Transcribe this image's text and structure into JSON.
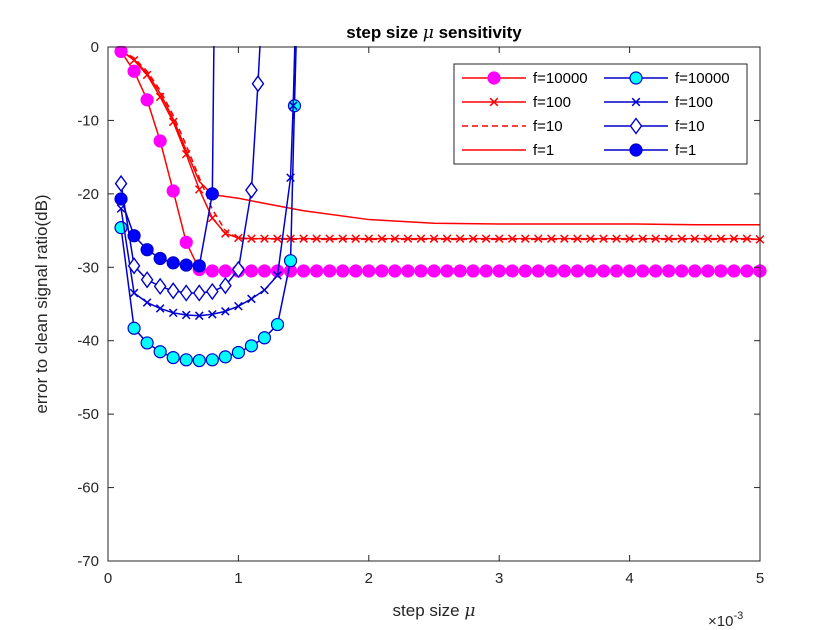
{
  "chart_data": {
    "type": "line",
    "title_prefix": "step size",
    "title_symbol": "μ",
    "title_suffix": "sensitivity",
    "xlabel_prefix": "step size",
    "xlabel_symbol": "μ",
    "ylabel": "error to clean signal ratio(dB)",
    "x_exponent_base": "×10",
    "x_exponent_power": "-3",
    "xlim": [
      0,
      5
    ],
    "ylim": [
      -70,
      0
    ],
    "xticks": [
      0,
      1,
      2,
      3,
      4,
      5
    ],
    "yticks": [
      0,
      -10,
      -20,
      -30,
      -40,
      -50,
      -60,
      -70
    ],
    "grid": false,
    "legend_position": "top-right",
    "series": [
      {
        "name": "f=10000",
        "color": "#ff0000",
        "line_style": "solid",
        "marker": "circle",
        "marker_color": "#ff00ff",
        "marker_edge": "#ff00ff",
        "x": [
          0.1,
          0.2,
          0.3,
          0.4,
          0.5,
          0.6,
          0.7,
          0.8,
          0.9,
          1.0,
          1.1,
          1.2,
          1.3,
          1.4,
          1.5,
          1.6,
          1.7,
          1.8,
          1.9,
          2.0,
          2.1,
          2.2,
          2.3,
          2.4,
          2.5,
          2.6,
          2.7,
          2.8,
          2.9,
          3.0,
          3.1,
          3.2,
          3.3,
          3.4,
          3.5,
          3.6,
          3.7,
          3.8,
          3.9,
          4.0,
          4.1,
          4.2,
          4.3,
          4.4,
          4.5,
          4.6,
          4.7,
          4.8,
          4.9,
          5.0
        ],
        "y": [
          -0.6,
          -3.3,
          -7.2,
          -12.8,
          -19.6,
          -26.6,
          -30.3,
          -30.5,
          -30.5,
          -30.5,
          -30.5,
          -30.5,
          -30.5,
          -30.5,
          -30.5,
          -30.5,
          -30.5,
          -30.5,
          -30.5,
          -30.5,
          -30.5,
          -30.5,
          -30.5,
          -30.5,
          -30.5,
          -30.5,
          -30.5,
          -30.5,
          -30.5,
          -30.5,
          -30.5,
          -30.5,
          -30.5,
          -30.5,
          -30.5,
          -30.5,
          -30.5,
          -30.5,
          -30.5,
          -30.5,
          -30.5,
          -30.5,
          -30.5,
          -30.5,
          -30.5,
          -30.5,
          -30.5,
          -30.5,
          -30.5,
          -30.5
        ]
      },
      {
        "name": "f=100",
        "color": "#ff0000",
        "line_style": "solid",
        "marker": "x",
        "marker_color": "#ff0000",
        "marker_edge": "#ff0000",
        "x": [
          0.1,
          0.2,
          0.3,
          0.4,
          0.5,
          0.6,
          0.7,
          0.8,
          0.9,
          1.0,
          1.1,
          1.2,
          1.3,
          1.4,
          1.5,
          1.6,
          1.7,
          1.8,
          1.9,
          2.0,
          2.1,
          2.2,
          2.3,
          2.4,
          2.5,
          2.6,
          2.7,
          2.8,
          2.9,
          3.0,
          3.1,
          3.2,
          3.3,
          3.4,
          3.5,
          3.6,
          3.7,
          3.8,
          3.9,
          4.0,
          4.1,
          4.2,
          4.3,
          4.4,
          4.5,
          4.6,
          4.7,
          4.8,
          4.9,
          5.0
        ],
        "y": [
          -0.5,
          -1.8,
          -3.8,
          -6.8,
          -10.2,
          -14.6,
          -19.4,
          -23.3,
          -25.4,
          -26.0,
          -26.1,
          -26.1,
          -26.1,
          -26.1,
          -26.1,
          -26.1,
          -26.1,
          -26.1,
          -26.1,
          -26.1,
          -26.1,
          -26.1,
          -26.1,
          -26.1,
          -26.1,
          -26.1,
          -26.1,
          -26.1,
          -26.1,
          -26.1,
          -26.1,
          -26.1,
          -26.1,
          -26.1,
          -26.1,
          -26.1,
          -26.1,
          -26.1,
          -26.1,
          -26.1,
          -26.1,
          -26.1,
          -26.1,
          -26.1,
          -26.1,
          -26.1,
          -26.1,
          -26.1,
          -26.1,
          -26.2
        ]
      },
      {
        "name": "f=10",
        "color": "#ff0000",
        "line_style": "dashed",
        "marker": "none",
        "marker_color": "#ff0000",
        "marker_edge": "#ff0000",
        "x": [
          0.1,
          0.2,
          0.3,
          0.4,
          0.5,
          0.6,
          0.7,
          0.8,
          0.9,
          1.0,
          1.5,
          2.0,
          2.5,
          3.0,
          3.5,
          4.0,
          4.5,
          5.0
        ],
        "y": [
          -0.4,
          -1.5,
          -3.3,
          -5.9,
          -9.3,
          -13.4,
          -17.8,
          -22.1,
          -25.0,
          -26.1,
          -26.2,
          -26.2,
          -26.2,
          -26.2,
          -26.2,
          -26.2,
          -26.2,
          -26.2
        ]
      },
      {
        "name": "f=1",
        "color": "#ff0000",
        "line_style": "solid",
        "marker": "none",
        "marker_color": "#ff0000",
        "marker_edge": "#ff0000",
        "x": [
          0.1,
          0.2,
          0.3,
          0.4,
          0.5,
          0.6,
          0.7,
          0.8,
          1.0,
          1.2,
          1.5,
          2.0,
          2.5,
          3.0,
          3.5,
          4.0,
          4.5,
          5.0
        ],
        "y": [
          -0.5,
          -1.7,
          -3.6,
          -6.3,
          -9.8,
          -14.1,
          -18.3,
          -20.1,
          -20.6,
          -21.3,
          -22.3,
          -23.5,
          -24.0,
          -24.1,
          -24.1,
          -24.1,
          -24.2,
          -24.2
        ]
      },
      {
        "name": "f=10000",
        "color": "#0000cc",
        "line_style": "solid",
        "marker": "circle",
        "marker_color": "#00ffff",
        "marker_edge": "#0000cc",
        "x": [
          0.1,
          0.2,
          0.3,
          0.4,
          0.5,
          0.6,
          0.7,
          0.8,
          0.9,
          1.0,
          1.1,
          1.2,
          1.3,
          1.4,
          1.43,
          1.45
        ],
        "y": [
          -24.6,
          -38.3,
          -40.3,
          -41.5,
          -42.3,
          -42.6,
          -42.7,
          -42.6,
          -42.2,
          -41.6,
          -40.7,
          -39.6,
          -37.8,
          -29.1,
          -8.0,
          5.0
        ]
      },
      {
        "name": "f=100",
        "color": "#0000cc",
        "line_style": "solid",
        "marker": "x",
        "marker_color": "#0000cc",
        "marker_edge": "#0000cc",
        "x": [
          0.1,
          0.2,
          0.3,
          0.4,
          0.5,
          0.6,
          0.7,
          0.8,
          0.9,
          1.0,
          1.1,
          1.2,
          1.3,
          1.4,
          1.42,
          1.44
        ],
        "y": [
          -22.0,
          -33.5,
          -34.8,
          -35.6,
          -36.2,
          -36.5,
          -36.6,
          -36.4,
          -36.0,
          -35.3,
          -34.3,
          -33.1,
          -31.1,
          -17.8,
          -8.0,
          5.0
        ]
      },
      {
        "name": "f=10",
        "color": "#0000cc",
        "line_style": "solid",
        "marker": "diamond",
        "marker_color": "#ffffff",
        "marker_edge": "#0000cc",
        "x": [
          0.1,
          0.2,
          0.3,
          0.4,
          0.5,
          0.6,
          0.7,
          0.8,
          0.9,
          1.0,
          1.1,
          1.15,
          1.18
        ],
        "y": [
          -18.6,
          -29.8,
          -31.7,
          -32.6,
          -33.2,
          -33.5,
          -33.5,
          -33.3,
          -32.5,
          -30.3,
          -19.5,
          -5.0,
          5.0
        ]
      },
      {
        "name": "f=1",
        "color": "#0000cc",
        "line_style": "solid",
        "marker": "circle",
        "marker_color": "#0000ff",
        "marker_edge": "#0000cc",
        "x": [
          0.1,
          0.2,
          0.3,
          0.4,
          0.5,
          0.6,
          0.7,
          0.8,
          0.815
        ],
        "y": [
          -20.7,
          -25.7,
          -27.6,
          -28.8,
          -29.4,
          -29.7,
          -29.8,
          -20.0,
          5.0
        ]
      }
    ],
    "legend_columns": [
      [
        0,
        1,
        2,
        3
      ],
      [
        4,
        5,
        6,
        7
      ]
    ]
  }
}
